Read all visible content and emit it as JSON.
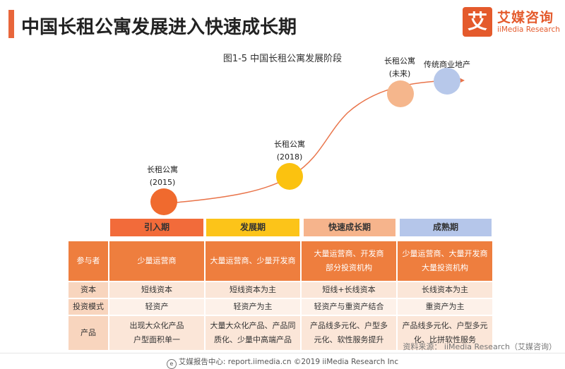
{
  "header": {
    "title": "中国长租公寓发展进入快速成长期",
    "logo_mark": "艾",
    "logo_name": "艾媒咨询",
    "logo_en": "iiMedia Research"
  },
  "figure": {
    "subtitle": "图1-5 中国长租公寓发展阶段"
  },
  "stages": [
    {
      "name": "长租公寓",
      "year": "(2015)",
      "color": "#F06A2E"
    },
    {
      "name": "长租公寓",
      "year": "(2018)",
      "color": "#FBC210"
    },
    {
      "name": "长租公寓",
      "year": "(未来)",
      "color": "#F5B68C"
    },
    {
      "name": "传统商业地产",
      "color": "#B7C8EA"
    }
  ],
  "phases": [
    {
      "label": "引入期",
      "color": "#F26B3A"
    },
    {
      "label": "发展期",
      "color": "#FCC419"
    },
    {
      "label": "快速成长期",
      "color": "#F6B48C"
    },
    {
      "label": "成熟期",
      "color": "#B5C6EA"
    }
  ],
  "table": {
    "header": {
      "label": "参与者",
      "cells": [
        "少量运营商",
        "大量运营商、少量开发商",
        "大量运营商、开发商\n部分投资机构",
        "少量运营商、大量开发商\n大量投资机构"
      ]
    },
    "rows": [
      {
        "label": "资本",
        "cells": [
          "短线资本",
          "短线资本为主",
          "短线+长线资本",
          "长线资本为主"
        ]
      },
      {
        "label": "投资模式",
        "cells": [
          "轻资产",
          "轻资产为主",
          "轻资产与重资产结合",
          "重资产为主"
        ]
      },
      {
        "label": "产品",
        "cells": [
          "出现大众化产品\n户型面积单一",
          "大量大众化产品、产品同\n质化、少量中高端产品",
          "产品线多元化、户型多\n元化、软性服务提升",
          "产品线多元化、户型多元\n化、比拼软性服务"
        ]
      }
    ]
  },
  "source": "资料来源：  iiMedia Research（艾媒咨询）",
  "footer": "艾媒报告中心: report.iimedia.cn ©2019  iiMedia Research  Inc"
}
